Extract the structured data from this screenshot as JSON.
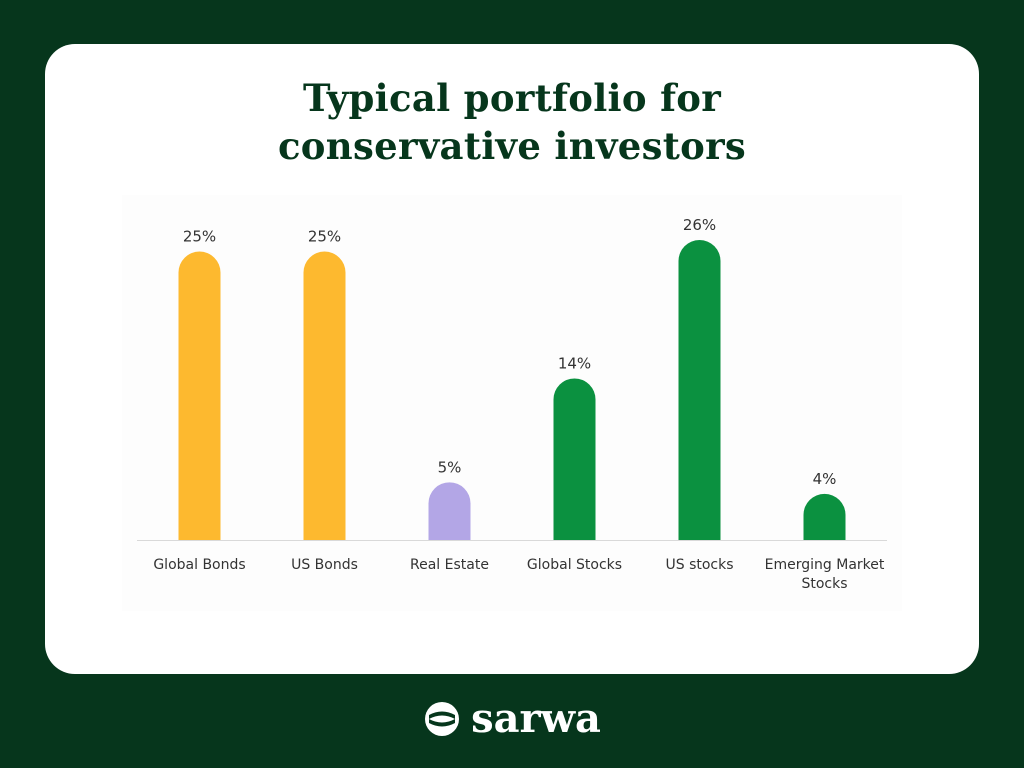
{
  "title_line1": "Typical portfolio for",
  "title_line2": "conservative investors",
  "brand": "sarwa",
  "colors": {
    "bonds": "#fdb92f",
    "real_estate": "#b3a6e6",
    "stocks": "#0b9140",
    "axis": "#d9d9d9",
    "label": "#333333",
    "background": "#06361c"
  },
  "chart_data": {
    "type": "bar",
    "title": "Typical portfolio for conservative investors",
    "categories": [
      "Global Bonds",
      "US Bonds",
      "Real Estate",
      "Global Stocks",
      "US stocks",
      "Emerging Market Stocks"
    ],
    "category_lines": [
      [
        "Global Bonds"
      ],
      [
        "US Bonds"
      ],
      [
        "Real Estate"
      ],
      [
        "Global Stocks"
      ],
      [
        "US stocks"
      ],
      [
        "Emerging Market",
        "Stocks"
      ]
    ],
    "values": [
      25,
      25,
      5,
      14,
      26,
      4
    ],
    "value_labels": [
      "25%",
      "25%",
      "5%",
      "14%",
      "26%",
      "4%"
    ],
    "bar_colors": [
      "#fdb92f",
      "#fdb92f",
      "#b3a6e6",
      "#0b9140",
      "#0b9140",
      "#0b9140"
    ],
    "ylim": [
      0,
      26
    ],
    "grid": false,
    "xlabel": "",
    "ylabel": ""
  }
}
